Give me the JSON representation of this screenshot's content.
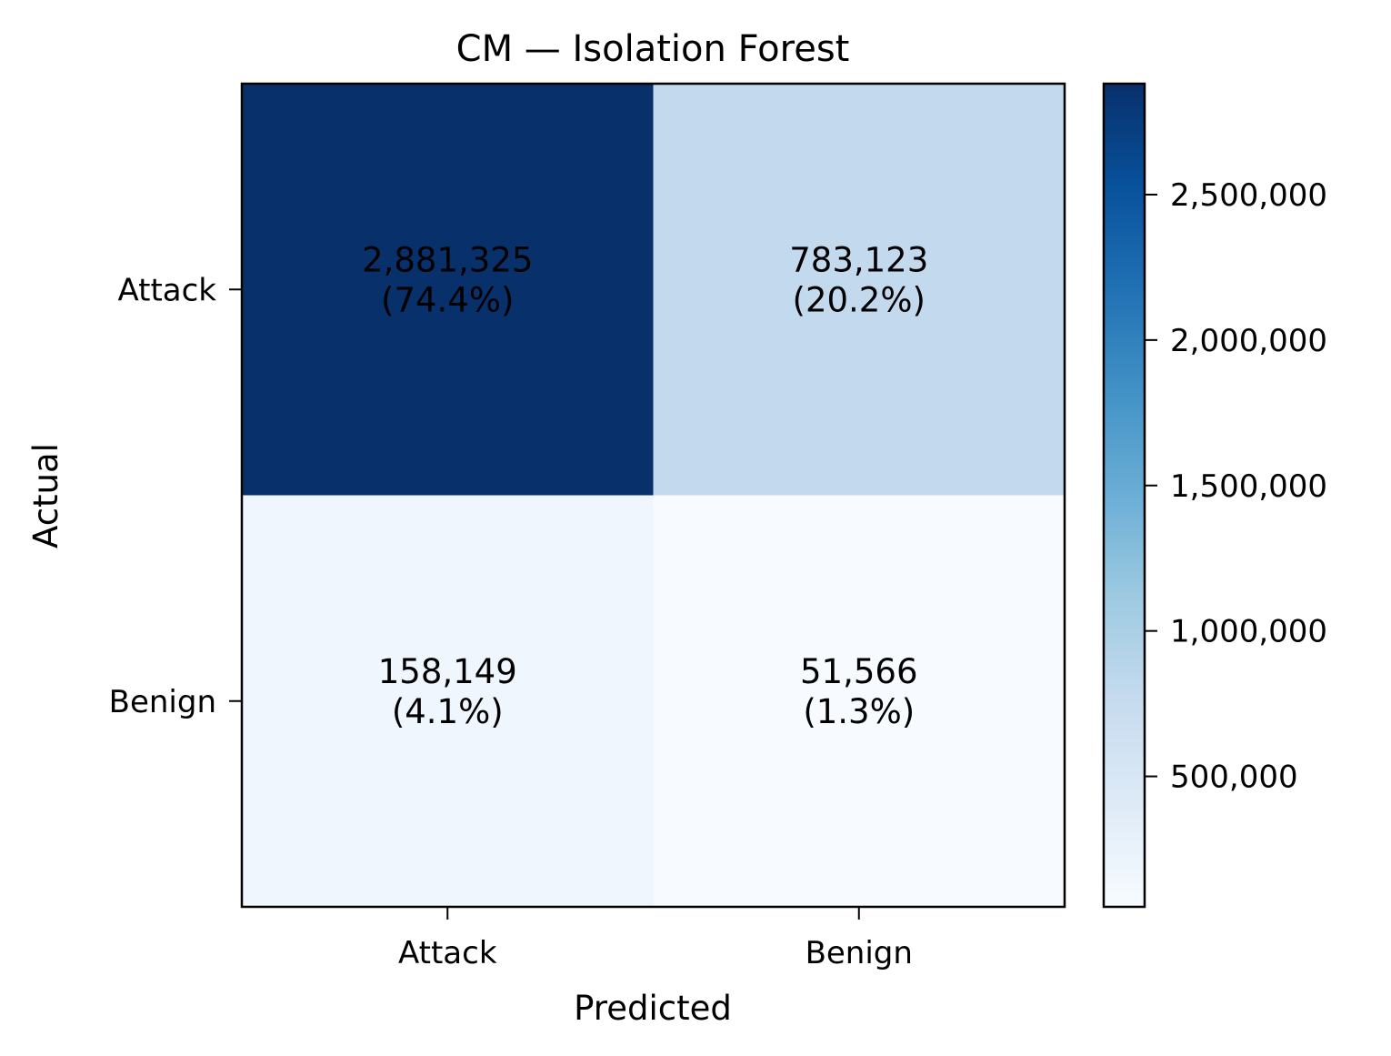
{
  "chart_data": {
    "type": "heatmap",
    "title": "CM — Isolation Forest",
    "xlabel": "Predicted",
    "ylabel": "Actual",
    "x_categories": [
      "Attack",
      "Benign"
    ],
    "y_categories": [
      "Attack",
      "Benign"
    ],
    "values": [
      [
        2881325,
        783123
      ],
      [
        158149,
        51566
      ]
    ],
    "cell_labels": [
      [
        [
          "2,881,325",
          "(74.4%)"
        ],
        [
          "783,123",
          "(20.2%)"
        ]
      ],
      [
        [
          "158,149",
          "(4.1%)"
        ],
        [
          "51,566",
          "(1.3%)"
        ]
      ]
    ],
    "colormap": "Blues",
    "colorbar": {
      "range": [
        51566,
        2881325
      ],
      "ticks": [
        500000,
        1000000,
        1500000,
        2000000,
        2500000
      ],
      "tick_labels": [
        "500,000",
        "1,000,000",
        "1,500,000",
        "2,000,000",
        "2,500,000"
      ]
    },
    "grid": false
  }
}
